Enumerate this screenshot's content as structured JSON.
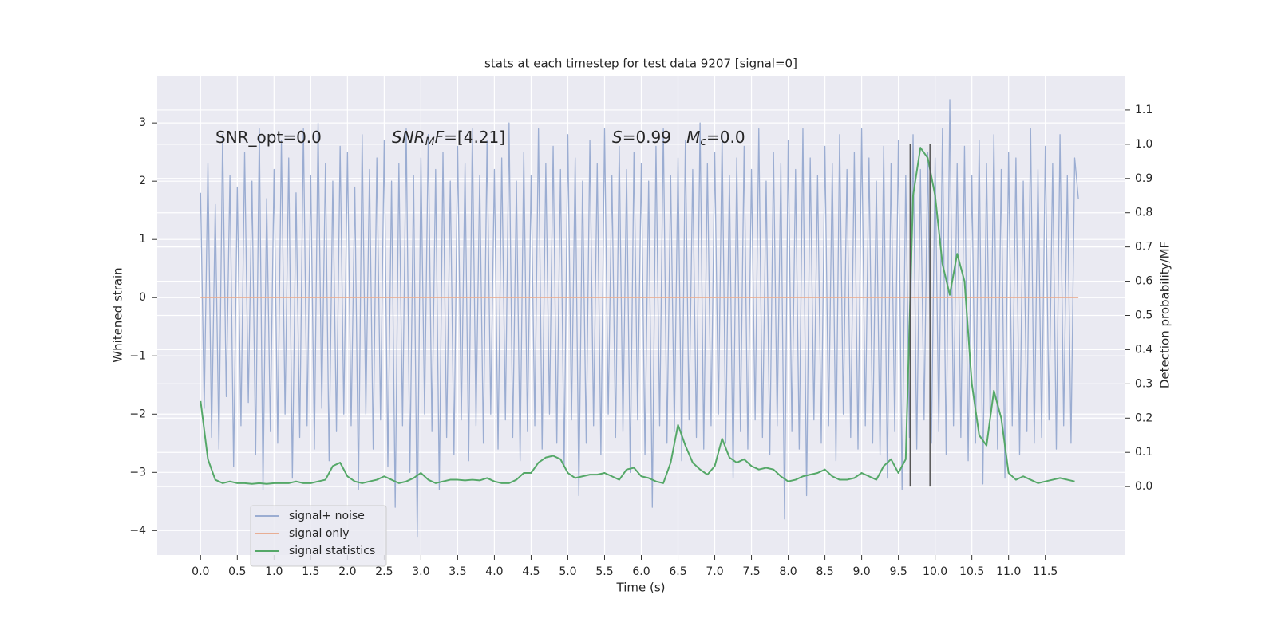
{
  "chart_data": {
    "type": "line",
    "title": "stats at each timestep for test data 9207 [signal=0]",
    "xlabel": "Time (s)",
    "ylabel": "Whitened strain",
    "y2label": "Detection probability/MF",
    "xlim": [
      -0.59,
      12.59
    ],
    "ylim": [
      -4.42,
      3.81
    ],
    "y2lim": [
      -0.2,
      1.2
    ],
    "xticks": [
      {
        "value": 0,
        "label": "0.0"
      },
      0.5,
      {
        "value": 1,
        "label": "1.0"
      },
      1.5,
      {
        "value": 2,
        "label": "2.0"
      },
      2.5,
      {
        "value": 3,
        "label": "3.0"
      },
      3.5,
      {
        "value": 4,
        "label": "4.0"
      },
      4.5,
      {
        "value": 5,
        "label": "5.0"
      },
      5.5,
      {
        "value": 6,
        "label": "6.0"
      },
      6.5,
      {
        "value": 7,
        "label": "7.0"
      },
      7.5,
      {
        "value": 8,
        "label": "8.0"
      },
      8.5,
      {
        "value": 9,
        "label": "9.0"
      },
      9.5,
      {
        "value": 10,
        "label": "10.0"
      },
      10.5,
      {
        "value": 11,
        "label": "11.0"
      },
      11.5
    ],
    "yticks": [
      {
        "value": -4,
        "label": "−4"
      },
      {
        "value": -3,
        "label": "−3"
      },
      {
        "value": -2,
        "label": "−2"
      },
      {
        "value": -1,
        "label": "−1"
      },
      0,
      1,
      2,
      3
    ],
    "y2ticks": [
      {
        "value": 0,
        "label": "0.0"
      },
      0.1,
      0.2,
      0.3,
      0.4,
      0.5,
      0.6,
      0.7,
      0.8,
      0.9,
      {
        "value": 1,
        "label": "1.0"
      },
      1.1
    ],
    "grid": true,
    "legend": "lower left",
    "annotations": [
      [
        {
          "text": "SNR_opt=0.0",
          "style": "normal"
        }
      ],
      [
        {
          "text": "SNR",
          "style": "italic"
        },
        {
          "text": "M",
          "style": "sub"
        },
        {
          "text": "F",
          "style": "italic"
        },
        {
          "text": "=[4.21]",
          "style": "normal"
        }
      ],
      [
        {
          "text": "S",
          "style": "italic"
        },
        {
          "text": "=0.99   ",
          "style": "normal"
        },
        {
          "text": "M",
          "style": "italic"
        },
        {
          "text": "c",
          "style": "sub"
        },
        {
          "text": "=0.0",
          "style": "normal"
        }
      ]
    ],
    "vlines": [
      9.66,
      9.93
    ],
    "vline_span": [
      0,
      1.0
    ],
    "vline_color": "#555555",
    "series": [
      {
        "name": "signal+ noise",
        "color": "#9badd2",
        "axis": "y",
        "x": [
          0,
          0.05,
          0.1,
          0.15,
          0.2,
          0.25,
          0.3,
          0.35,
          0.4,
          0.45,
          0.5,
          0.55,
          0.6,
          0.65,
          0.7,
          0.75,
          0.8,
          0.85,
          0.9,
          0.95,
          1,
          1.05,
          1.1,
          1.15,
          1.2,
          1.25,
          1.3,
          1.35,
          1.4,
          1.45,
          1.5,
          1.55,
          1.6,
          1.65,
          1.7,
          1.75,
          1.8,
          1.85,
          1.9,
          1.95,
          2,
          2.05,
          2.1,
          2.15,
          2.2,
          2.25,
          2.3,
          2.35,
          2.4,
          2.45,
          2.5,
          2.55,
          2.6,
          2.65,
          2.7,
          2.75,
          2.8,
          2.85,
          2.9,
          2.95,
          3,
          3.05,
          3.1,
          3.15,
          3.2,
          3.25,
          3.3,
          3.35,
          3.4,
          3.45,
          3.5,
          3.55,
          3.6,
          3.65,
          3.7,
          3.75,
          3.8,
          3.85,
          3.9,
          3.95,
          4,
          4.05,
          4.1,
          4.15,
          4.2,
          4.25,
          4.3,
          4.35,
          4.4,
          4.45,
          4.5,
          4.55,
          4.6,
          4.65,
          4.7,
          4.75,
          4.8,
          4.85,
          4.9,
          4.95,
          5,
          5.05,
          5.1,
          5.15,
          5.2,
          5.25,
          5.3,
          5.35,
          5.4,
          5.45,
          5.5,
          5.55,
          5.6,
          5.65,
          5.7,
          5.75,
          5.8,
          5.85,
          5.9,
          5.95,
          6,
          6.05,
          6.1,
          6.15,
          6.2,
          6.25,
          6.3,
          6.35,
          6.4,
          6.45,
          6.5,
          6.55,
          6.6,
          6.65,
          6.7,
          6.75,
          6.8,
          6.85,
          6.9,
          6.95,
          7,
          7.05,
          7.1,
          7.15,
          7.2,
          7.25,
          7.3,
          7.35,
          7.4,
          7.45,
          7.5,
          7.55,
          7.6,
          7.65,
          7.7,
          7.75,
          7.8,
          7.85,
          7.9,
          7.95,
          8,
          8.05,
          8.1,
          8.15,
          8.2,
          8.25,
          8.3,
          8.35,
          8.4,
          8.45,
          8.5,
          8.55,
          8.6,
          8.65,
          8.7,
          8.75,
          8.8,
          8.85,
          8.9,
          8.95,
          9,
          9.05,
          9.1,
          9.15,
          9.2,
          9.25,
          9.3,
          9.35,
          9.4,
          9.45,
          9.5,
          9.55,
          9.6,
          9.65,
          9.7,
          9.75,
          9.8,
          9.85,
          9.9,
          9.95,
          10,
          10.05,
          10.1,
          10.15,
          10.2,
          10.25,
          10.3,
          10.35,
          10.4,
          10.45,
          10.5,
          10.55,
          10.6,
          10.65,
          10.7,
          10.75,
          10.8,
          10.85,
          10.9,
          10.95,
          11,
          11.05,
          11.1,
          11.15,
          11.2,
          11.25,
          11.3,
          11.35,
          11.4,
          11.45,
          11.5,
          11.55,
          11.6,
          11.65,
          11.7,
          11.75,
          11.8,
          11.85,
          11.9,
          11.95
        ],
        "values": [
          1.8,
          -1.9,
          2.3,
          -2.4,
          1.6,
          -2.6,
          2.8,
          -1.7,
          2.1,
          -2.9,
          1.9,
          -2.2,
          2.5,
          -1.8,
          2.0,
          -2.7,
          2.9,
          -3.3,
          1.7,
          -2.3,
          2.2,
          -2.5,
          2.7,
          -2.0,
          2.4,
          -3.1,
          1.8,
          -2.4,
          2.9,
          -2.2,
          2.1,
          -2.6,
          3.0,
          -1.9,
          2.3,
          -2.8,
          2.0,
          -2.3,
          2.6,
          -2.0,
          2.5,
          -2.2,
          1.9,
          -3.3,
          2.8,
          -2.0,
          2.2,
          -2.6,
          2.4,
          -2.1,
          2.7,
          -2.9,
          2.0,
          -3.6,
          2.3,
          -2.2,
          2.9,
          -3.0,
          2.1,
          -4.1,
          2.4,
          -2.0,
          2.8,
          -2.3,
          2.2,
          -3.3,
          2.5,
          -2.4,
          2.0,
          -2.7,
          2.6,
          -2.1,
          2.3,
          -2.8,
          2.9,
          -2.2,
          2.1,
          -2.5,
          2.7,
          -2.0,
          2.2,
          -2.6,
          2.4,
          -2.1,
          3.0,
          -2.4,
          2.0,
          -2.8,
          2.5,
          -2.3,
          2.1,
          -2.2,
          2.9,
          -2.6,
          2.3,
          -2.0,
          2.6,
          -2.5,
          2.2,
          -2.9,
          2.8,
          -2.1,
          2.4,
          -3.4,
          2.0,
          -2.5,
          2.7,
          -2.2,
          2.3,
          -2.7,
          2.9,
          -2.0,
          2.1,
          -2.4,
          2.6,
          -2.3,
          2.2,
          -3.0,
          2.5,
          -2.1,
          2.3,
          -2.7,
          2.0,
          -3.6,
          2.6,
          -2.2,
          2.9,
          -2.5,
          2.1,
          -2.3,
          2.4,
          -2.8,
          2.7,
          -2.1,
          2.2,
          -2.4,
          3.0,
          -2.6,
          2.3,
          -2.2,
          2.5,
          -2.0,
          2.8,
          -2.5,
          2.1,
          -3.1,
          2.4,
          -2.3,
          2.6,
          -2.6,
          2.2,
          -2.1,
          2.9,
          -2.4,
          2.0,
          -2.7,
          2.5,
          -2.2,
          2.3,
          -3.8,
          2.7,
          -2.3,
          2.2,
          -2.6,
          2.9,
          -3.4,
          2.4,
          -2.1,
          2.1,
          -2.5,
          2.6,
          -2.2,
          2.3,
          -2.8,
          2.8,
          -2.0,
          2.2,
          -2.4,
          2.5,
          -2.6,
          2.9,
          -2.2,
          2.4,
          -2.5,
          2.0,
          -2.7,
          2.6,
          -3.1,
          2.3,
          -2.3,
          2.7,
          -3.3,
          2.1,
          -2.4,
          2.8,
          -2.6,
          2.2,
          -2.1,
          2.5,
          -2.5,
          2.4,
          -2.3,
          2.9,
          -2.7,
          3.4,
          -2.2,
          2.3,
          -2.4,
          2.6,
          -2.8,
          2.1,
          -2.5,
          2.7,
          -3.2,
          2.3,
          -2.1,
          2.8,
          -2.6,
          2.2,
          -3.1,
          2.5,
          -2.2,
          2.4,
          -2.7,
          2.0,
          -2.3,
          2.9,
          -2.5,
          2.2,
          -2.4,
          2.6,
          -2.1,
          2.3,
          -2.6,
          2.8,
          -2.2,
          2.1,
          -2.5,
          2.4,
          1.7
        ]
      },
      {
        "name": "signal only",
        "color": "#e8ae94",
        "axis": "y",
        "x": [
          0,
          11.95
        ],
        "values": [
          0,
          0
        ]
      },
      {
        "name": "signal statistics",
        "color": "#55a868",
        "axis": "y2",
        "x": [
          0,
          0.1,
          0.2,
          0.3,
          0.4,
          0.5,
          0.6,
          0.7,
          0.8,
          0.9,
          1,
          1.1,
          1.2,
          1.3,
          1.4,
          1.5,
          1.6,
          1.7,
          1.8,
          1.9,
          2,
          2.1,
          2.2,
          2.3,
          2.4,
          2.5,
          2.6,
          2.7,
          2.8,
          2.9,
          3,
          3.1,
          3.2,
          3.3,
          3.4,
          3.5,
          3.6,
          3.7,
          3.8,
          3.9,
          4,
          4.1,
          4.2,
          4.3,
          4.4,
          4.5,
          4.6,
          4.7,
          4.8,
          4.9,
          5,
          5.1,
          5.2,
          5.3,
          5.4,
          5.5,
          5.6,
          5.7,
          5.8,
          5.9,
          6,
          6.1,
          6.2,
          6.3,
          6.4,
          6.5,
          6.6,
          6.7,
          6.8,
          6.9,
          7,
          7.1,
          7.2,
          7.3,
          7.4,
          7.5,
          7.6,
          7.7,
          7.8,
          7.9,
          8,
          8.1,
          8.2,
          8.3,
          8.4,
          8.5,
          8.6,
          8.7,
          8.8,
          8.9,
          9,
          9.1,
          9.2,
          9.3,
          9.4,
          9.5,
          9.6,
          9.7,
          9.8,
          9.9,
          10,
          10.1,
          10.2,
          10.3,
          10.4,
          10.5,
          10.6,
          10.7,
          10.8,
          10.9,
          11,
          11.1,
          11.2,
          11.3,
          11.4,
          11.5,
          11.6,
          11.7,
          11.8,
          11.9
        ],
        "values": [
          0.25,
          0.08,
          0.02,
          0.01,
          0.015,
          0.01,
          0.01,
          0.008,
          0.01,
          0.008,
          0.01,
          0.01,
          0.01,
          0.015,
          0.01,
          0.01,
          0.015,
          0.02,
          0.06,
          0.07,
          0.03,
          0.015,
          0.01,
          0.015,
          0.02,
          0.03,
          0.02,
          0.01,
          0.015,
          0.025,
          0.04,
          0.02,
          0.01,
          0.015,
          0.02,
          0.02,
          0.018,
          0.02,
          0.018,
          0.025,
          0.015,
          0.01,
          0.01,
          0.02,
          0.04,
          0.04,
          0.07,
          0.085,
          0.09,
          0.08,
          0.04,
          0.025,
          0.03,
          0.035,
          0.035,
          0.04,
          0.03,
          0.02,
          0.05,
          0.055,
          0.03,
          0.025,
          0.015,
          0.01,
          0.07,
          0.18,
          0.12,
          0.07,
          0.05,
          0.035,
          0.06,
          0.14,
          0.085,
          0.07,
          0.08,
          0.06,
          0.05,
          0.055,
          0.05,
          0.03,
          0.015,
          0.02,
          0.03,
          0.035,
          0.04,
          0.05,
          0.03,
          0.02,
          0.02,
          0.025,
          0.04,
          0.03,
          0.02,
          0.06,
          0.08,
          0.04,
          0.08,
          0.85,
          0.99,
          0.96,
          0.85,
          0.65,
          0.56,
          0.68,
          0.6,
          0.3,
          0.15,
          0.12,
          0.28,
          0.2,
          0.04,
          0.02,
          0.03,
          0.02,
          0.01,
          0.015,
          0.02,
          0.025,
          0.02,
          0.015
        ]
      }
    ]
  }
}
